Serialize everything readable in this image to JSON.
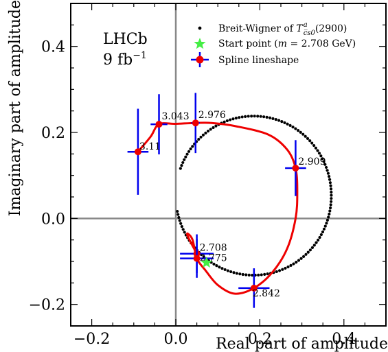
{
  "chart_data": {
    "type": "scatter",
    "xlabel": "Real part of amplitude",
    "ylabel": "Imaginary part of amplitude",
    "xlim": [
      -0.25,
      0.5
    ],
    "ylim": [
      -0.25,
      0.5
    ],
    "x_ticks": [
      -0.2,
      0.0,
      0.2,
      0.4
    ],
    "x_tick_labels": [
      "−0.2",
      "0.0",
      "0.2",
      "0.4"
    ],
    "y_ticks": [
      -0.2,
      0.0,
      0.2,
      0.4
    ],
    "y_tick_labels": [
      "−0.2",
      "0.0",
      "0.2",
      "0.4"
    ],
    "zero_lines": true,
    "experiment_label": "LHCb",
    "lumi_label_main": "9 fb",
    "lumi_label_sup": "−1",
    "legend_position": "top-right",
    "series": [
      {
        "name_prefix": "Breit-Wigner of ",
        "name_symbol": "T",
        "name_sup": "a",
        "name_sub": "c̅s0",
        "name_suffix": "(2900)",
        "kind": "dotted-circle",
        "color": "#000000",
        "center": [
          0.185,
          0.053
        ],
        "radius": 0.185,
        "start_angle_deg": 180,
        "end_angle_deg": 520,
        "n_points": 150
      },
      {
        "name_prefix": "Start point (",
        "name_italic": "m",
        "name_suffix": " = 2.708 GeV)",
        "kind": "star",
        "color": "#44ee44",
        "x": 0.073,
        "y": -0.103
      },
      {
        "name": "Spline lineshape",
        "kind": "spline",
        "color": "#ee0000",
        "errorbar_color": "#0000ee",
        "points": [
          {
            "label": "2.708",
            "x": 0.05,
            "y": -0.082,
            "xerr": 0.04,
            "yerr": 0.045
          },
          {
            "label": "2.775",
            "x": 0.05,
            "y": -0.093,
            "xerr": 0.04,
            "yerr": 0.045
          },
          {
            "label": "2.842",
            "x": 0.186,
            "y": -0.162,
            "xerr": 0.037,
            "yerr": 0.046
          },
          {
            "label": "2.909",
            "x": 0.285,
            "y": 0.117,
            "xerr": 0.025,
            "yerr": 0.065
          },
          {
            "label": "2.976",
            "x": 0.047,
            "y": 0.222,
            "xerr": 0.01,
            "yerr": 0.07
          },
          {
            "label": "3.043",
            "x": -0.04,
            "y": 0.219,
            "xerr": 0.02,
            "yerr": 0.07
          },
          {
            "label": "3.11",
            "x": -0.09,
            "y": 0.155,
            "xerr": 0.025,
            "yerr": 0.1
          }
        ],
        "curve": [
          [
            0.05,
            -0.082
          ],
          [
            0.03,
            -0.045
          ],
          [
            0.028,
            -0.035
          ],
          [
            0.04,
            -0.05
          ],
          [
            0.05,
            -0.093
          ],
          [
            0.07,
            -0.12
          ],
          [
            0.1,
            -0.155
          ],
          [
            0.14,
            -0.175
          ],
          [
            0.186,
            -0.162
          ],
          [
            0.23,
            -0.125
          ],
          [
            0.265,
            -0.07
          ],
          [
            0.285,
            0.0
          ],
          [
            0.289,
            0.06
          ],
          [
            0.285,
            0.117
          ],
          [
            0.265,
            0.16
          ],
          [
            0.22,
            0.195
          ],
          [
            0.14,
            0.215
          ],
          [
            0.085,
            0.222
          ],
          [
            0.047,
            0.222
          ],
          [
            0.0,
            0.22
          ],
          [
            -0.04,
            0.219
          ],
          [
            -0.06,
            0.19
          ],
          [
            -0.09,
            0.155
          ]
        ]
      }
    ]
  }
}
